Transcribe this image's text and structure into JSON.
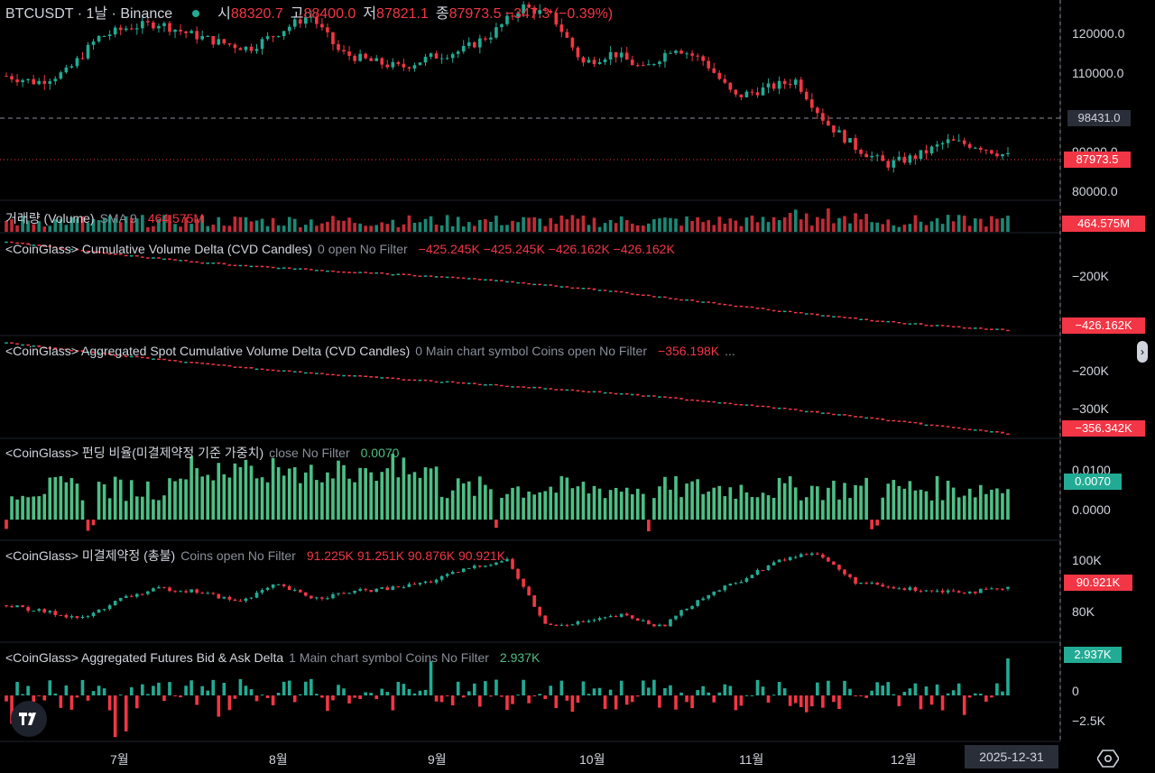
{
  "header": {
    "symbol": "BTCUSDT · 1날 · Binance",
    "open_key": "시",
    "open": "88320.7",
    "high_key": "고",
    "high": "88400.0",
    "low_key": "저",
    "low": "87821.1",
    "close_key": "종",
    "close": "87973.5",
    "change": "−347.3 (−0.39%)"
  },
  "price_axis": {
    "ticks": [
      "120000.0",
      "110000.0",
      "90000.0",
      "80000.0"
    ],
    "crosshair_tag": "98431.0",
    "last_price_tag": "87973.5"
  },
  "volume_pane": {
    "name": "거래량 (Volume)",
    "args": "SMA 9",
    "value": "464.575M",
    "tag": "464.575M"
  },
  "cvd_pane": {
    "name": "<CoinGlass> Cumulative Volume Delta (CVD Candles)",
    "args": "0 open No Filter",
    "values": "−425.245K  −425.245K  −426.162K  −426.162K",
    "ticks": [
      "−200K"
    ],
    "tag": "−426.162K"
  },
  "spot_cvd_pane": {
    "name": "<CoinGlass> Aggregated Spot Cumulative Volume Delta (CVD Candles)",
    "args": "0 Main chart symbol Coins open No Filter",
    "values": "−356.198K",
    "ellipsis": "...",
    "ticks": [
      "−200K",
      "−300K"
    ],
    "tag": "−356.342K"
  },
  "funding_pane": {
    "name": "<CoinGlass> 펀딩 비율(미결제약정 기준 가중치)",
    "args": "close No Filter",
    "value": "0.0070",
    "ticks": [
      "0.0100",
      "0.0000"
    ],
    "tag": "0.0070"
  },
  "oi_pane": {
    "name": "<CoinGlass> 미결제약정 (총불)",
    "args": "Coins open No Filter",
    "values": "91.225K  91.251K  90.876K  90.921K",
    "ticks": [
      "100K",
      "80K"
    ],
    "tag": "90.921K"
  },
  "bidask_pane": {
    "name": "<CoinGlass> Aggregated Futures Bid & Ask Delta",
    "args": "1 Main chart symbol Coins No Filter",
    "value": "2.937K",
    "ticks": [
      "0",
      "−2.5K"
    ],
    "tag": "2.937K"
  },
  "time_axis": {
    "months": [
      "7월",
      "8월",
      "9월",
      "10월",
      "11월",
      "12월"
    ],
    "date_tag": "2025-12-31"
  },
  "colors": {
    "up": "#22ab94",
    "down": "#f23645",
    "funding": "#4cbf86",
    "background": "#000000",
    "panel_text": "#d1d4dc",
    "muted": "#8a8e99"
  },
  "icons": {
    "logo": "tradingview-logo-icon",
    "settings": "settings-gear-icon",
    "handle": "chevron-right-icon"
  },
  "chart_data": [
    {
      "type": "candlestick",
      "title": "BTCUSDT · 1날 · Binance",
      "x_labels": [
        "7월",
        "8월",
        "9월",
        "10월",
        "11월",
        "12월"
      ],
      "ylim": [
        78000,
        125000
      ],
      "series": [
        {
          "name": "BTCUSDT",
          "close": [
            107000,
            105500,
            108000,
            116000,
            118500,
            119500,
            117000,
            115000,
            113500,
            117500,
            121500,
            112500,
            110500,
            109000,
            111500,
            113000,
            117000,
            123500,
            121000,
            110000,
            112500,
            108500,
            114000,
            110500,
            102000,
            104000,
            106000,
            96000,
            90000,
            86000,
            88000,
            91500,
            90500,
            88000
          ]
        }
      ]
    },
    {
      "type": "bar",
      "title": "거래량 (Volume)",
      "last_value": "464.575M"
    },
    {
      "type": "line",
      "title": "<CoinGlass> Cumulative Volume Delta (CVD Candles)",
      "last_value": "−426.162K"
    },
    {
      "type": "line",
      "title": "<CoinGlass> Aggregated Spot Cumulative Volume Delta (CVD Candles)",
      "last_value": "−356.342K"
    },
    {
      "type": "bar",
      "title": "<CoinGlass> 펀딩 비율(미결제약정 기준 가중치)",
      "ylim": [
        -0.002,
        0.011
      ],
      "last_value": "0.0070"
    },
    {
      "type": "line",
      "title": "<CoinGlass> 미결제약정 (총불)",
      "ylim": [
        75000,
        105000
      ],
      "last_value": "90.921K"
    },
    {
      "type": "bar",
      "title": "<CoinGlass> Aggregated Futures Bid & Ask Delta",
      "ylim": [
        -3500,
        4000
      ],
      "last_value": "2.937K"
    }
  ]
}
